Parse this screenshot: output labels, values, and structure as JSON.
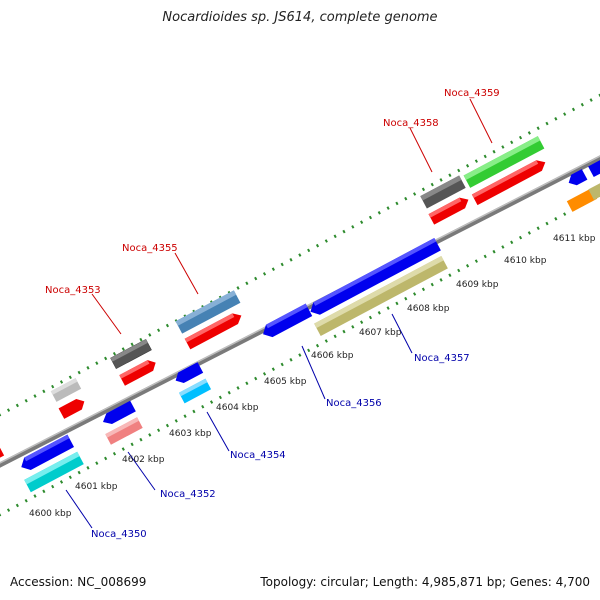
{
  "title": "Nocardioides sp. JS614, complete genome",
  "footer": {
    "accession": "Accession: NC_008699",
    "summary": "Topology: circular; Length: 4,985,871 bp; Genes: 4,700"
  },
  "ticks": [
    "4600 kbp",
    "4601 kbp",
    "4602 kbp",
    "4603 kbp",
    "4604 kbp",
    "4605 kbp",
    "4606 kbp",
    "4607 kbp",
    "4608 kbp",
    "4609 kbp",
    "4610 kbp",
    "4611 kbp"
  ],
  "labels_red": [
    "Noca_4353",
    "Noca_4355",
    "Noca_4358",
    "Noca_4359"
  ],
  "labels_blue": [
    "Noca_4350",
    "Noca_4352",
    "Noca_4354",
    "Noca_4356",
    "Noca_4357"
  ],
  "colors": {
    "backbone": "#8a8a8a",
    "tick_green": "#2e8b2e",
    "label_red": "#cc0000",
    "label_blue": "#0000aa",
    "blue": "#0000ee",
    "red": "#ee0000",
    "green": "#33cc33",
    "steel": "#4682b4",
    "khaki": "#bdb76b",
    "cyan": "#00cccc",
    "pink": "#f08080",
    "skyblue": "#00bfff",
    "gray_dark": "#555555",
    "gray_light": "#bbbbbb",
    "orange": "#ff8c00"
  }
}
